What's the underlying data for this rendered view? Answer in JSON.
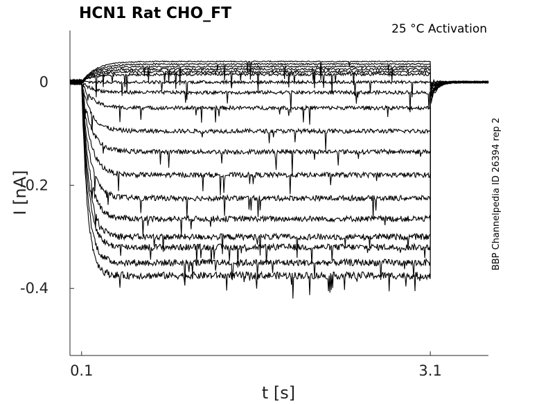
{
  "chart_data": {
    "type": "line",
    "title": "HCN1  Rat  CHO_FT",
    "annotation": "25 °C  Activation",
    "side_label": "BBP Channelpedia ID 26394 rep 2",
    "xlabel": "t [s]",
    "ylabel": "I [nA]",
    "xlim": [
      0.0,
      3.6
    ],
    "ylim": [
      -0.53,
      0.1
    ],
    "x_ticks": [
      0.1,
      3.1
    ],
    "x_tick_labels": [
      "0.1",
      "3.1"
    ],
    "y_ticks": [
      0,
      -0.2,
      -0.4
    ],
    "y_tick_labels": [
      "0",
      "-0.2",
      "-0.4"
    ],
    "grid": false,
    "trace_color": "#000000",
    "step_start_s": 0.1,
    "step_end_s": 3.1,
    "holding_current_nA": 0.0,
    "steady_state_currents_nA": [
      0.04,
      0.035,
      0.03,
      0.025,
      0.02,
      0.015,
      0.0,
      -0.02,
      -0.05,
      -0.095,
      -0.135,
      -0.18,
      -0.225,
      -0.265,
      -0.3,
      -0.32,
      -0.35,
      -0.375
    ]
  }
}
